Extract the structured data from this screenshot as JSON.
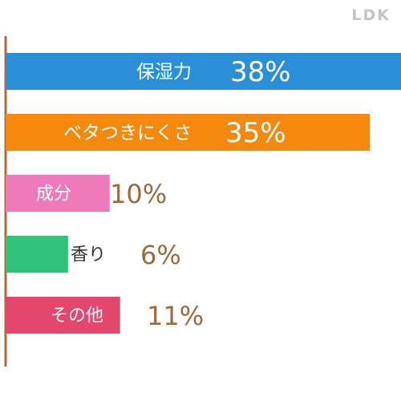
{
  "brand": "LDK",
  "chart_data": {
    "type": "bar",
    "orientation": "horizontal",
    "categories": [
      "保湿力",
      "ベタつきにくさ",
      "成分",
      "香り",
      "その他"
    ],
    "values": [
      38,
      35,
      10,
      6,
      11
    ],
    "value_labels": [
      "38%",
      "35%",
      "10%",
      "6%",
      "11%"
    ],
    "colors": [
      "#2b8fd8",
      "#f5890e",
      "#ee7aba",
      "#2ec27a",
      "#e4466e"
    ],
    "axis_color": "#b0673a",
    "value_text_color": "#9c6a3c",
    "xlim": [
      0,
      38
    ],
    "grid": false,
    "title": "",
    "xlabel": "",
    "ylabel": ""
  }
}
